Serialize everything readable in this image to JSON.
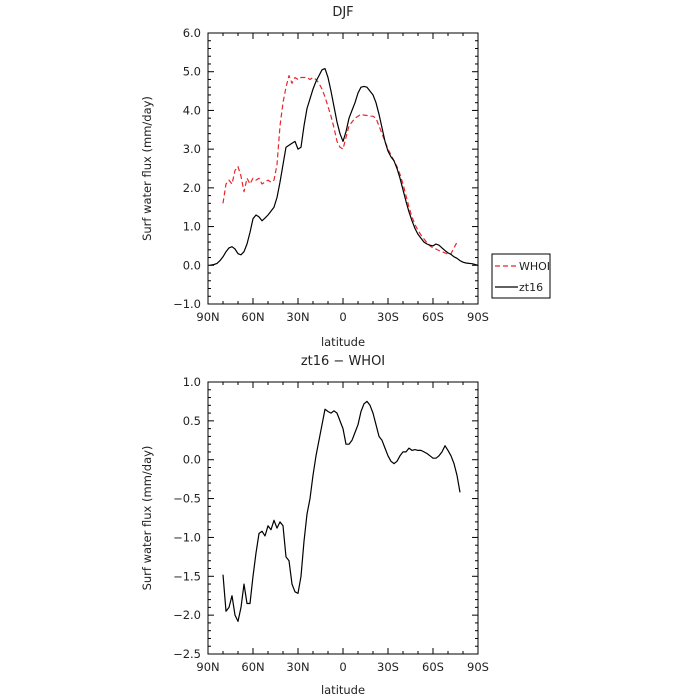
{
  "chart_data": [
    {
      "type": "line",
      "title": "DJF",
      "xlabel": "latitude",
      "ylabel": "Surf water flux (mm/day)",
      "xlim": [
        -90,
        90
      ],
      "ylim": [
        -1.0,
        6.0
      ],
      "x_ticks": [
        -90,
        -60,
        -30,
        0,
        30,
        60,
        90
      ],
      "x_tick_labels": [
        "90N",
        "60N",
        "30N",
        "0",
        "30S",
        "60S",
        "90S"
      ],
      "y_ticks": [
        -1,
        0,
        1,
        2,
        3,
        4,
        5,
        6
      ],
      "y_tick_labels": [
        "−1.0",
        "0.0",
        "1.0",
        "2.0",
        "3.0",
        "4.0",
        "5.0",
        "6.0"
      ],
      "grid": false,
      "legend_position": "outside-right",
      "series": [
        {
          "name": "WHOI",
          "color": "#e8272d",
          "style": "dashed",
          "points": [
            [
              -80,
              1.6
            ],
            [
              -78,
              2.1
            ],
            [
              -76,
              2.2
            ],
            [
              -74,
              2.1
            ],
            [
              -72,
              2.45
            ],
            [
              -70,
              2.55
            ],
            [
              -68,
              2.3
            ],
            [
              -66,
              1.9
            ],
            [
              -64,
              2.25
            ],
            [
              -62,
              2.1
            ],
            [
              -60,
              2.25
            ],
            [
              -58,
              2.2
            ],
            [
              -56,
              2.25
            ],
            [
              -54,
              2.1
            ],
            [
              -52,
              2.15
            ],
            [
              -50,
              2.2
            ],
            [
              -48,
              2.15
            ],
            [
              -46,
              2.2
            ],
            [
              -44,
              2.6
            ],
            [
              -42,
              3.6
            ],
            [
              -40,
              4.2
            ],
            [
              -38,
              4.6
            ],
            [
              -36,
              4.9
            ],
            [
              -34,
              4.7
            ],
            [
              -32,
              4.85
            ],
            [
              -30,
              4.8
            ],
            [
              -28,
              4.85
            ],
            [
              -26,
              4.85
            ],
            [
              -24,
              4.85
            ],
            [
              -22,
              4.8
            ],
            [
              -20,
              4.85
            ],
            [
              -18,
              4.8
            ],
            [
              -16,
              4.7
            ],
            [
              -14,
              4.55
            ],
            [
              -12,
              4.35
            ],
            [
              -10,
              4.1
            ],
            [
              -8,
              3.85
            ],
            [
              -6,
              3.55
            ],
            [
              -4,
              3.2
            ],
            [
              -2,
              3.05
            ],
            [
              0,
              3.0
            ],
            [
              2,
              3.3
            ],
            [
              4,
              3.6
            ],
            [
              6,
              3.7
            ],
            [
              8,
              3.8
            ],
            [
              10,
              3.85
            ],
            [
              12,
              3.9
            ],
            [
              14,
              3.88
            ],
            [
              16,
              3.87
            ],
            [
              18,
              3.85
            ],
            [
              20,
              3.85
            ],
            [
              22,
              3.8
            ],
            [
              24,
              3.6
            ],
            [
              26,
              3.4
            ],
            [
              28,
              3.2
            ],
            [
              30,
              3.0
            ],
            [
              32,
              2.85
            ],
            [
              34,
              2.7
            ],
            [
              36,
              2.55
            ],
            [
              38,
              2.35
            ],
            [
              40,
              2.1
            ],
            [
              42,
              1.8
            ],
            [
              44,
              1.5
            ],
            [
              46,
              1.25
            ],
            [
              48,
              1.05
            ],
            [
              50,
              0.9
            ],
            [
              52,
              0.78
            ],
            [
              54,
              0.68
            ],
            [
              56,
              0.58
            ],
            [
              58,
              0.5
            ],
            [
              60,
              0.45
            ],
            [
              62,
              0.42
            ],
            [
              64,
              0.38
            ],
            [
              66,
              0.35
            ],
            [
              68,
              0.32
            ],
            [
              70,
              0.28
            ],
            [
              72,
              0.3
            ],
            [
              74,
              0.45
            ],
            [
              76,
              0.6
            ]
          ]
        },
        {
          "name": "zt16",
          "color": "#000000",
          "style": "solid",
          "points": [
            [
              -89,
              0.0
            ],
            [
              -86,
              0.02
            ],
            [
              -84,
              0.05
            ],
            [
              -82,
              0.12
            ],
            [
              -80,
              0.22
            ],
            [
              -78,
              0.35
            ],
            [
              -76,
              0.45
            ],
            [
              -74,
              0.48
            ],
            [
              -72,
              0.42
            ],
            [
              -70,
              0.3
            ],
            [
              -68,
              0.27
            ],
            [
              -66,
              0.35
            ],
            [
              -64,
              0.55
            ],
            [
              -62,
              0.85
            ],
            [
              -60,
              1.2
            ],
            [
              -58,
              1.3
            ],
            [
              -56,
              1.25
            ],
            [
              -54,
              1.15
            ],
            [
              -52,
              1.22
            ],
            [
              -50,
              1.3
            ],
            [
              -48,
              1.4
            ],
            [
              -46,
              1.5
            ],
            [
              -44,
              1.75
            ],
            [
              -42,
              2.15
            ],
            [
              -40,
              2.6
            ],
            [
              -38,
              3.05
            ],
            [
              -36,
              3.1
            ],
            [
              -34,
              3.15
            ],
            [
              -32,
              3.2
            ],
            [
              -30,
              3.0
            ],
            [
              -28,
              3.05
            ],
            [
              -26,
              3.6
            ],
            [
              -24,
              4.05
            ],
            [
              -22,
              4.3
            ],
            [
              -20,
              4.55
            ],
            [
              -18,
              4.75
            ],
            [
              -16,
              4.9
            ],
            [
              -14,
              5.05
            ],
            [
              -12,
              5.08
            ],
            [
              -10,
              4.85
            ],
            [
              -8,
              4.5
            ],
            [
              -6,
              4.1
            ],
            [
              -4,
              3.7
            ],
            [
              -2,
              3.4
            ],
            [
              0,
              3.2
            ],
            [
              2,
              3.45
            ],
            [
              4,
              3.8
            ],
            [
              6,
              4.0
            ],
            [
              8,
              4.2
            ],
            [
              10,
              4.45
            ],
            [
              12,
              4.6
            ],
            [
              14,
              4.62
            ],
            [
              16,
              4.6
            ],
            [
              18,
              4.5
            ],
            [
              20,
              4.4
            ],
            [
              22,
              4.2
            ],
            [
              24,
              3.9
            ],
            [
              26,
              3.55
            ],
            [
              28,
              3.2
            ],
            [
              30,
              2.95
            ],
            [
              32,
              2.8
            ],
            [
              34,
              2.7
            ],
            [
              36,
              2.5
            ],
            [
              38,
              2.25
            ],
            [
              40,
              1.95
            ],
            [
              42,
              1.65
            ],
            [
              44,
              1.38
            ],
            [
              46,
              1.15
            ],
            [
              48,
              0.95
            ],
            [
              50,
              0.8
            ],
            [
              52,
              0.7
            ],
            [
              54,
              0.6
            ],
            [
              56,
              0.55
            ],
            [
              58,
              0.52
            ],
            [
              60,
              0.5
            ],
            [
              62,
              0.55
            ],
            [
              64,
              0.52
            ],
            [
              66,
              0.45
            ],
            [
              68,
              0.38
            ],
            [
              70,
              0.32
            ],
            [
              72,
              0.28
            ],
            [
              74,
              0.22
            ],
            [
              76,
              0.18
            ],
            [
              78,
              0.12
            ],
            [
              80,
              0.08
            ],
            [
              82,
              0.06
            ],
            [
              84,
              0.05
            ],
            [
              86,
              0.04
            ],
            [
              88,
              0.02
            ],
            [
              90,
              0.0
            ]
          ]
        }
      ]
    },
    {
      "type": "line",
      "title": "zt16 − WHOI",
      "xlabel": "latitude",
      "ylabel": "Surf water flux (mm/day)",
      "xlim": [
        -90,
        90
      ],
      "ylim": [
        -2.5,
        1.0
      ],
      "x_ticks": [
        -90,
        -60,
        -30,
        0,
        30,
        60,
        90
      ],
      "x_tick_labels": [
        "90N",
        "60N",
        "30N",
        "0",
        "30S",
        "60S",
        "90S"
      ],
      "y_ticks": [
        -2.5,
        -2.0,
        -1.5,
        -1.0,
        -0.5,
        0.0,
        0.5,
        1.0
      ],
      "y_tick_labels": [
        "−2.5",
        "−2.0",
        "−1.5",
        "−1.0",
        "−0.5",
        "0.0",
        "0.5",
        "1.0"
      ],
      "grid": false,
      "series": [
        {
          "color": "#000000",
          "style": "solid",
          "points": [
            [
              -80,
              -1.48
            ],
            [
              -78,
              -1.95
            ],
            [
              -76,
              -1.9
            ],
            [
              -74,
              -1.75
            ],
            [
              -72,
              -2.0
            ],
            [
              -70,
              -2.08
            ],
            [
              -68,
              -1.9
            ],
            [
              -66,
              -1.6
            ],
            [
              -64,
              -1.85
            ],
            [
              -62,
              -1.85
            ],
            [
              -60,
              -1.5
            ],
            [
              -58,
              -1.2
            ],
            [
              -56,
              -0.95
            ],
            [
              -54,
              -0.92
            ],
            [
              -52,
              -0.98
            ],
            [
              -50,
              -0.85
            ],
            [
              -48,
              -0.9
            ],
            [
              -46,
              -0.78
            ],
            [
              -44,
              -0.88
            ],
            [
              -42,
              -0.8
            ],
            [
              -40,
              -0.85
            ],
            [
              -38,
              -1.25
            ],
            [
              -36,
              -1.3
            ],
            [
              -34,
              -1.6
            ],
            [
              -32,
              -1.7
            ],
            [
              -30,
              -1.72
            ],
            [
              -28,
              -1.5
            ],
            [
              -26,
              -1.05
            ],
            [
              -24,
              -0.7
            ],
            [
              -22,
              -0.5
            ],
            [
              -20,
              -0.2
            ],
            [
              -18,
              0.05
            ],
            [
              -16,
              0.25
            ],
            [
              -14,
              0.45
            ],
            [
              -12,
              0.65
            ],
            [
              -10,
              0.62
            ],
            [
              -8,
              0.6
            ],
            [
              -6,
              0.63
            ],
            [
              -4,
              0.6
            ],
            [
              -2,
              0.5
            ],
            [
              0,
              0.4
            ],
            [
              2,
              0.2
            ],
            [
              4,
              0.2
            ],
            [
              6,
              0.25
            ],
            [
              8,
              0.35
            ],
            [
              10,
              0.45
            ],
            [
              12,
              0.62
            ],
            [
              14,
              0.72
            ],
            [
              16,
              0.75
            ],
            [
              18,
              0.7
            ],
            [
              20,
              0.6
            ],
            [
              22,
              0.45
            ],
            [
              24,
              0.3
            ],
            [
              26,
              0.25
            ],
            [
              28,
              0.15
            ],
            [
              30,
              0.05
            ],
            [
              32,
              -0.02
            ],
            [
              34,
              -0.05
            ],
            [
              36,
              -0.02
            ],
            [
              38,
              0.05
            ],
            [
              40,
              0.1
            ],
            [
              42,
              0.1
            ],
            [
              44,
              0.15
            ],
            [
              46,
              0.12
            ],
            [
              48,
              0.13
            ],
            [
              50,
              0.12
            ],
            [
              52,
              0.12
            ],
            [
              54,
              0.1
            ],
            [
              56,
              0.08
            ],
            [
              58,
              0.05
            ],
            [
              60,
              0.02
            ],
            [
              62,
              0.02
            ],
            [
              64,
              0.05
            ],
            [
              66,
              0.1
            ],
            [
              68,
              0.18
            ],
            [
              70,
              0.12
            ],
            [
              72,
              0.05
            ],
            [
              74,
              -0.05
            ],
            [
              76,
              -0.2
            ],
            [
              78,
              -0.42
            ]
          ]
        }
      ]
    }
  ]
}
